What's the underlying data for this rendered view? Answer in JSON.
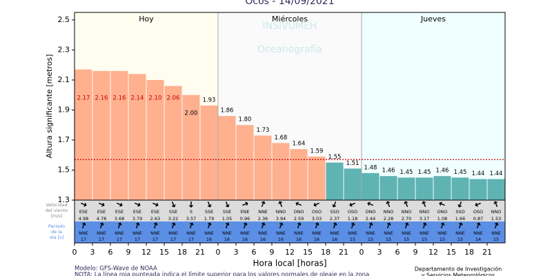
{
  "chart_data": {
    "type": "bar",
    "title": "Ocós  -  14/09/2021",
    "watermark": [
      "INSIVUMEH",
      "Oceanografía"
    ],
    "ylabel": "Altura significante [metros]",
    "xlabel": "Hora local [horas]",
    "days": [
      "Hoy",
      "Miércoles",
      "Jueves"
    ],
    "categories": [
      0,
      3,
      6,
      9,
      12,
      15,
      18,
      21,
      0,
      3,
      6,
      9,
      12,
      15,
      18,
      21,
      0,
      3,
      6,
      9,
      12,
      15,
      18,
      21
    ],
    "values": [
      2.17,
      2.16,
      2.16,
      2.14,
      2.1,
      2.06,
      2.0,
      1.93,
      1.86,
      1.8,
      1.73,
      1.68,
      1.64,
      1.59,
      1.55,
      1.51,
      1.48,
      1.46,
      1.45,
      1.45,
      1.46,
      1.45,
      1.44,
      1.44
    ],
    "value_labels": [
      "2.17",
      "2.16",
      "2.16",
      "2.14",
      "2.10",
      "2.06",
      "2.00",
      "1.93",
      "1.86",
      "1.80",
      "1.73",
      "1.68",
      "1.64",
      "1.59",
      "1.55",
      "1.51",
      "1.48",
      "1.46",
      "1.45",
      "1.45",
      "1.46",
      "1.45",
      "1.44",
      "1.44"
    ],
    "threshold": 1.57,
    "color_above": "#ffb08f",
    "color_below": "#5fb3b3",
    "threshold_color": "#cc0000",
    "ylim": [
      1.3,
      2.55
    ],
    "yticks": [
      1.3,
      1.5,
      1.7,
      1.9,
      2.1,
      2.3,
      2.5
    ],
    "wind_label": "Velocidad del viento [m/s]",
    "wind_dir": [
      "ESE",
      "ESE",
      "ESE",
      "ESE",
      "ESE",
      "SSE",
      "S",
      "SSE",
      "SSE",
      "ENE",
      "NNE",
      "NNO",
      "ONO",
      "OSO",
      "SSO",
      "OSO",
      "ONO",
      "NNO",
      "NNO",
      "NNO",
      "ONO",
      "SSO",
      "OSO",
      "NNO"
    ],
    "wind_speed": [
      "4.98",
      "4.78",
      "3.68",
      "3.79",
      "2.63",
      "3.22",
      "3.57",
      "1.79",
      "1.05",
      "0.96",
      "2.36",
      "3.94",
      "2.59",
      "3.03",
      "2.37",
      "1.18",
      "2.44",
      "2.28",
      "2.70",
      "3.17",
      "1.08",
      "1.66",
      "0.87",
      "1.53"
    ],
    "wave_label": "Periodo de la ola [s]",
    "wave_dir": [
      "NNE",
      "NNE",
      "NNE",
      "NNE",
      "NNE",
      "NNE",
      "NNE",
      "NNE",
      "NNE",
      "NNE",
      "NNE",
      "NNE",
      "NNE",
      "NNE",
      "NNE",
      "NNE",
      "NNE",
      "NNE",
      "NNE",
      "NNE",
      "NNE",
      "NNE",
      "NNE",
      "NNE"
    ],
    "wave_period": [
      17,
      17,
      17,
      17,
      17,
      17,
      17,
      16,
      16,
      16,
      16,
      16,
      16,
      16,
      16,
      15,
      15,
      15,
      15,
      15,
      15,
      15,
      14,
      15
    ],
    "footer_left": [
      "Modelo: GFS-Wave de NOAA",
      "NOTA: La línea roja punteada indica el límite superior para los valores normales de oleaje en la zona"
    ],
    "footer_right": [
      "Departamento de Investigación",
      "y Servicios Meteorológicos"
    ]
  }
}
